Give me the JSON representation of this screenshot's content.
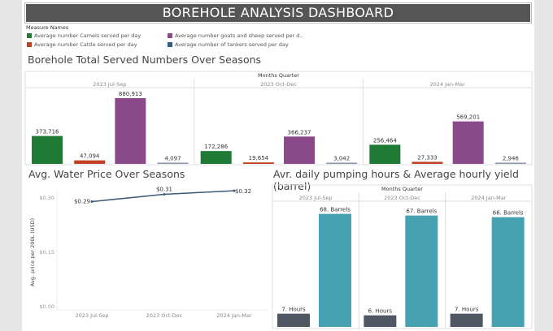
{
  "title": "BOREHOLE ANALYSIS DASHBOARD",
  "legend": {
    "title": "Measure Names",
    "items": [
      {
        "label": "Average number Camels served per day",
        "color": "#1f7a35"
      },
      {
        "label": "Average number Cattle served per day",
        "color": "#c0401f"
      },
      {
        "label": "Average number goats and sheep served per d..",
        "color": "#8a4a8a"
      },
      {
        "label": "Average number of tankers served per day",
        "color": "#2f5f86"
      }
    ]
  },
  "chart_data": [
    {
      "type": "bar",
      "title": "Borehole Total Served Numbers Over Seasons",
      "header": "Months Quarter",
      "categories": [
        "2023 Jul-Sep",
        "2023 Oct-Dec",
        "2024 Jan-Mar"
      ],
      "series": [
        {
          "name": "Average number Camels served per day",
          "values": [
            373716,
            172286,
            256464
          ],
          "labels": [
            "373,716",
            "172,286",
            "256,464"
          ],
          "color": "#1f7a35"
        },
        {
          "name": "Average number Cattle served per day",
          "values": [
            47094,
            19654,
            27333
          ],
          "labels": [
            "47,094",
            "19,654",
            "27,333"
          ],
          "color": "#c0401f"
        },
        {
          "name": "Average number goats and sheep served per d..",
          "values": [
            880913,
            366237,
            569201
          ],
          "labels": [
            "880,913",
            "366,237",
            "569,201"
          ],
          "color": "#8a4a8a"
        },
        {
          "name": "Average number of tankers served per day",
          "values": [
            4097,
            3042,
            2946
          ],
          "labels": [
            "4,097",
            "3,042",
            "2,946"
          ],
          "color": "#8a96a8"
        }
      ]
    },
    {
      "type": "line",
      "title": "Avg. Water Price Over Seasons",
      "ylabel": "Avg. price per 200L (USD)",
      "x": [
        "2023 Jul-Sep",
        "2023 Oct-Dec",
        "2024 Jan-Mar"
      ],
      "values": [
        0.29,
        0.31,
        0.32
      ],
      "labels": [
        "$0.29",
        "$0.31",
        "$0.32"
      ],
      "yticks": [
        "$0.30",
        "$0.15",
        "$0.00"
      ],
      "ytick_values": [
        0.3,
        0.15,
        0.0
      ],
      "ylim": [
        0,
        0.33
      ],
      "color": "#3d5a7a"
    },
    {
      "type": "bar",
      "title": "Avr. daily pumping hours & Average hourly yield (barrel)",
      "header": "Months Quarter",
      "categories": [
        "2023 Jul-Sep",
        "2023 Oct-Dec",
        "2024 Jan-Mar"
      ],
      "series": [
        {
          "values": [
            7,
            6,
            7
          ],
          "labels": [
            "7. Hours",
            "6. Hours",
            "7. Hours"
          ],
          "color": "#4f5862"
        },
        {
          "values": [
            68,
            67,
            66
          ],
          "labels": [
            "68. Barrels",
            "67. Barrels",
            "66. Barrels"
          ],
          "color": "#46a2b0"
        }
      ]
    }
  ]
}
